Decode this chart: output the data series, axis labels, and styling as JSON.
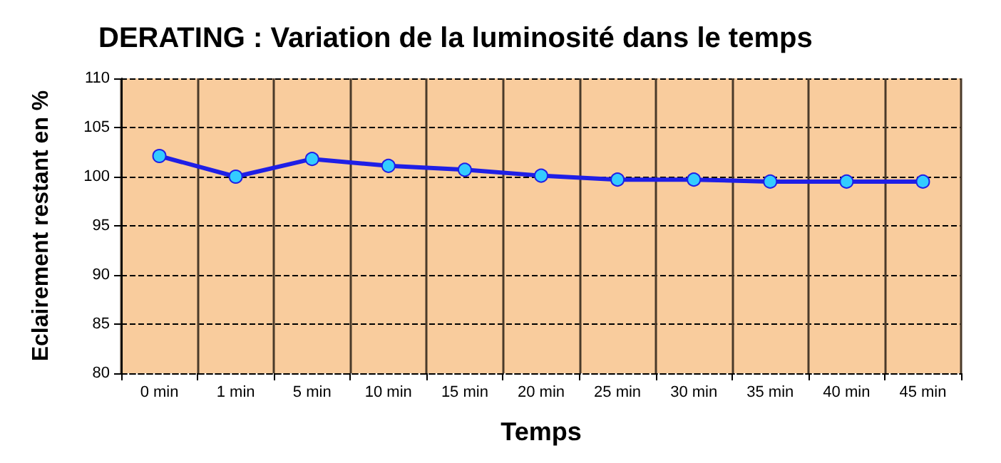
{
  "chart_data": {
    "type": "line",
    "title": "DERATING : Variation de la luminosité dans le temps",
    "xlabel": "Temps",
    "ylabel": "Eclairement restant en %",
    "categories": [
      "0 min",
      "1 min",
      "5 min",
      "10 min",
      "15 min",
      "20 min",
      "25 min",
      "30 min",
      "35 min",
      "40 min",
      "45 min"
    ],
    "series": [
      {
        "color": "#1f1fe6",
        "values": [
          102.1,
          100,
          101.8,
          101.1,
          100.7,
          100.1,
          99.7,
          99.7,
          99.5,
          99.5,
          99.5
        ]
      }
    ],
    "ylim": [
      80,
      110
    ],
    "yticks": [
      80,
      85,
      90,
      95,
      100,
      105,
      110
    ],
    "grid": true,
    "marker": "circle",
    "line_style": "solid",
    "legend": false
  }
}
